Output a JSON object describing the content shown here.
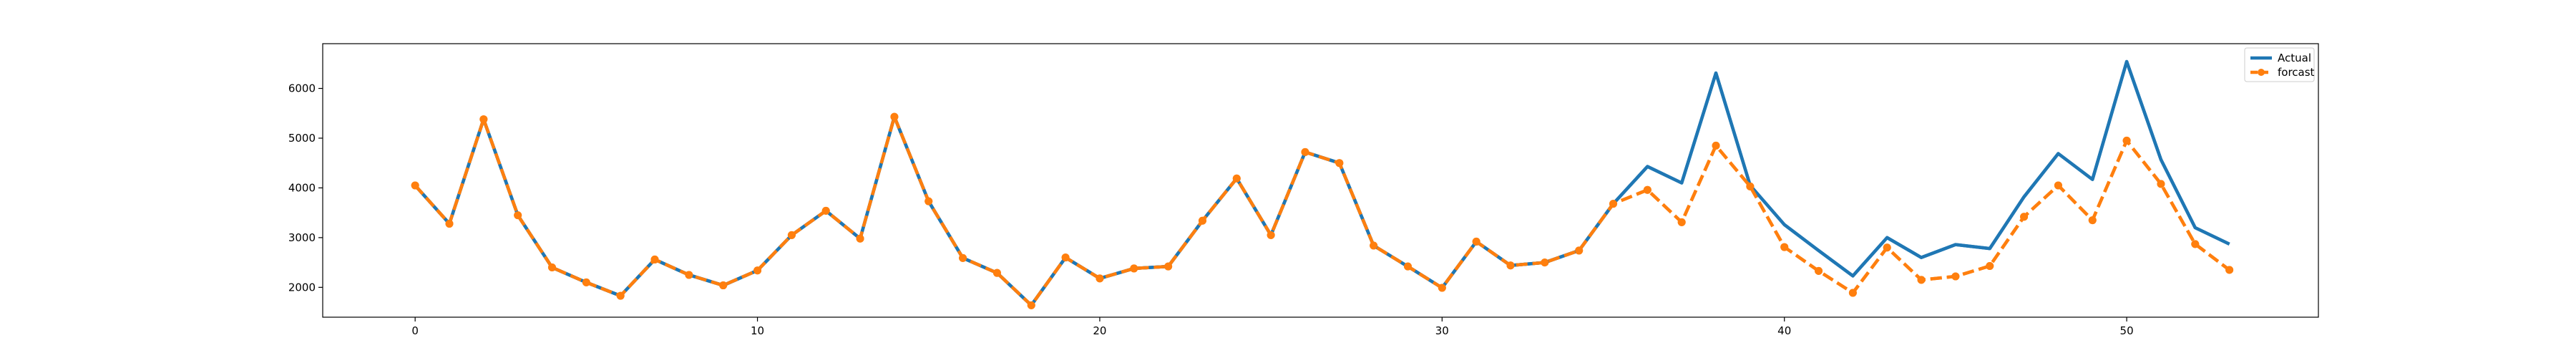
{
  "chart_data": {
    "type": "line",
    "title": "",
    "xlabel": "",
    "ylabel": "",
    "xlim": [
      -2.7,
      55.6
    ],
    "ylim": [
      1400,
      6900
    ],
    "xticks": [
      0,
      10,
      20,
      30,
      40,
      50
    ],
    "yticks": [
      2000,
      3000,
      4000,
      5000,
      6000
    ],
    "xtick_labels": [
      "0",
      "10",
      "20",
      "30",
      "40",
      "50"
    ],
    "ytick_labels": [
      "2000",
      "3000",
      "4000",
      "5000",
      "6000"
    ],
    "grid": false,
    "legend_position": "top-right",
    "series": [
      {
        "name": "Actual",
        "color": "#1f77b4",
        "style": "solid",
        "marker": "none",
        "x": [
          0,
          1,
          2,
          3,
          4,
          5,
          6,
          7,
          8,
          9,
          10,
          11,
          12,
          13,
          14,
          15,
          16,
          17,
          18,
          19,
          20,
          21,
          22,
          23,
          24,
          25,
          26,
          27,
          28,
          29,
          30,
          31,
          32,
          33,
          34,
          35,
          36,
          37,
          38,
          39,
          40,
          41,
          42,
          43,
          44,
          45,
          46,
          47,
          48,
          49,
          50,
          51,
          52,
          53
        ],
        "values": [
          4050,
          3280,
          5380,
          3450,
          2400,
          2100,
          1830,
          2560,
          2250,
          2040,
          2340,
          3050,
          3540,
          2980,
          5430,
          3730,
          2590,
          2290,
          1640,
          2600,
          2180,
          2380,
          2420,
          3340,
          4190,
          3050,
          4720,
          4500,
          2840,
          2420,
          1990,
          2920,
          2440,
          2500,
          2740,
          3680,
          4430,
          4100,
          6310,
          4050,
          3260,
          2740,
          2230,
          3000,
          2600,
          2860,
          2780,
          3820,
          4690,
          4170,
          6540,
          4570,
          3200,
          2870
        ]
      },
      {
        "name": "forcast",
        "color": "#ff7f0e",
        "style": "dashed",
        "marker": "circle",
        "x": [
          0,
          1,
          2,
          3,
          4,
          5,
          6,
          7,
          8,
          9,
          10,
          11,
          12,
          13,
          14,
          15,
          16,
          17,
          18,
          19,
          20,
          21,
          22,
          23,
          24,
          25,
          26,
          27,
          28,
          29,
          30,
          31,
          32,
          33,
          34,
          35,
          36,
          37,
          38,
          39,
          40,
          41,
          42,
          43,
          44,
          45,
          46,
          47,
          48,
          49,
          50,
          51,
          52,
          53
        ],
        "values": [
          4050,
          3280,
          5380,
          3450,
          2400,
          2100,
          1830,
          2560,
          2250,
          2040,
          2340,
          3050,
          3540,
          2980,
          5430,
          3730,
          2590,
          2290,
          1640,
          2600,
          2180,
          2380,
          2420,
          3340,
          4190,
          3050,
          4720,
          4500,
          2840,
          2420,
          1990,
          2920,
          2440,
          2500,
          2740,
          3680,
          3960,
          3310,
          4850,
          4030,
          2810,
          2330,
          1890,
          2800,
          2150,
          2220,
          2430,
          3420,
          4050,
          3350,
          4950,
          4080,
          2870,
          2350
        ]
      }
    ]
  }
}
